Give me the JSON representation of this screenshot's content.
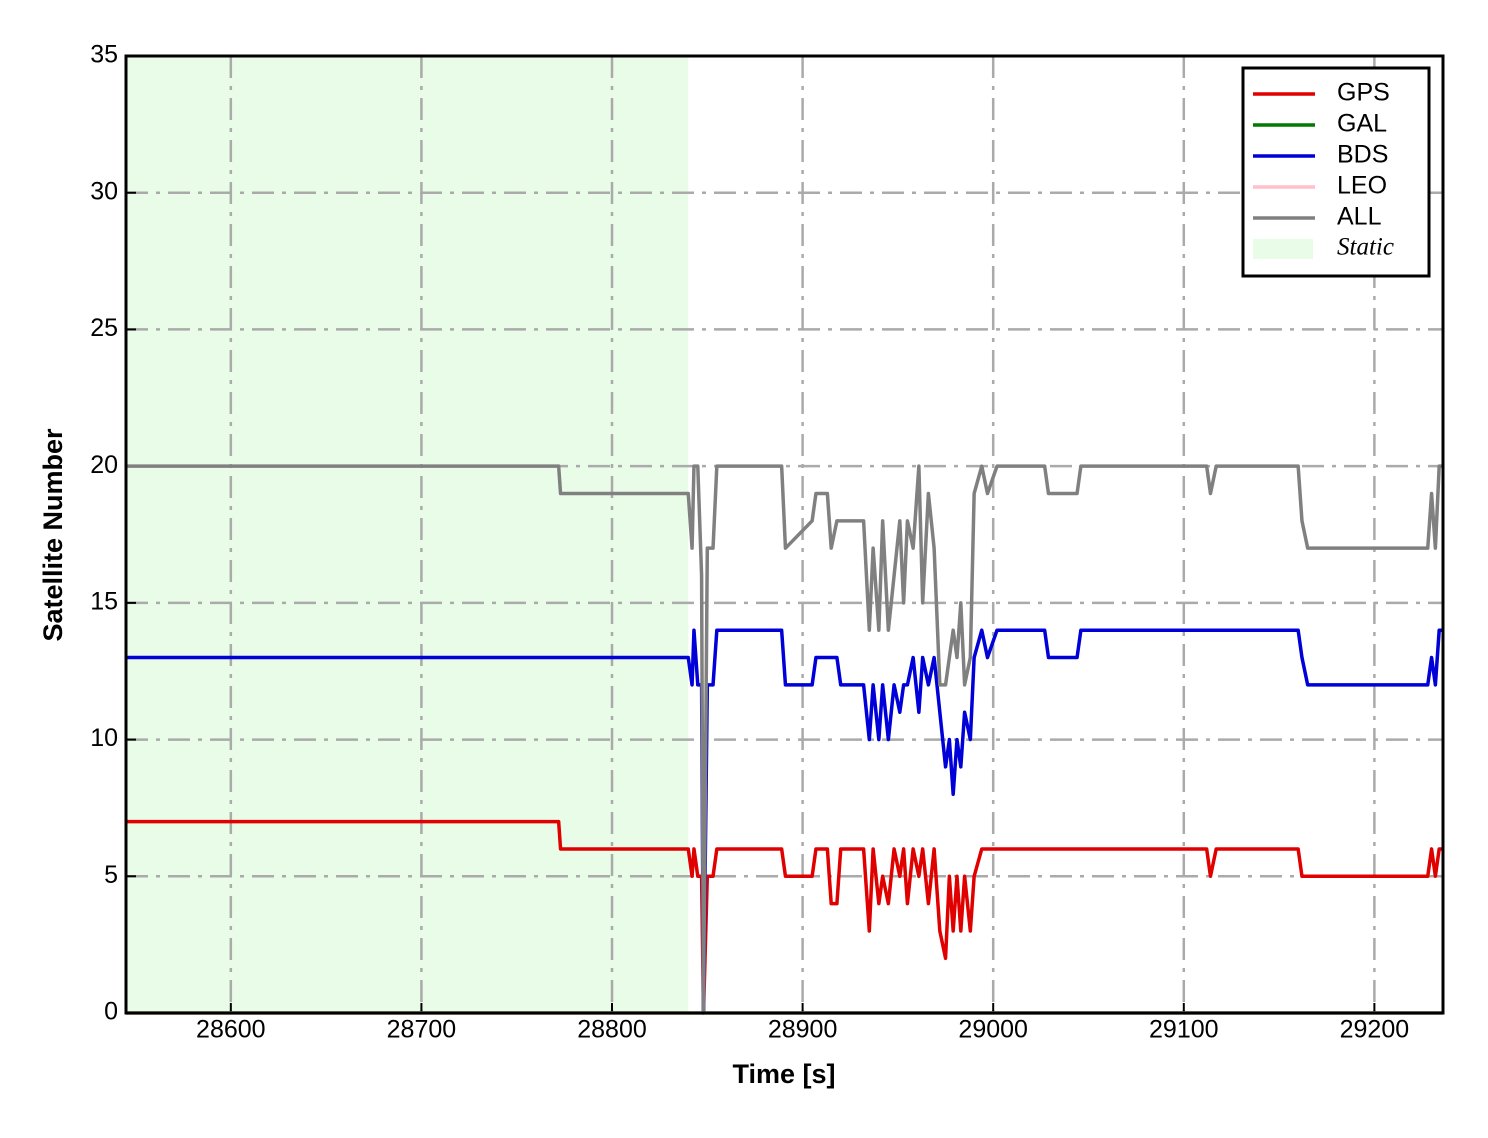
{
  "chart_data": {
    "type": "line",
    "x_label": "Time [s]",
    "y_label": "Satellite Number",
    "x": [
      28545,
      28772,
      28773,
      28840,
      28842,
      28843,
      28845,
      28847,
      28848,
      28850,
      28853,
      28855,
      28889,
      28891,
      28905,
      28907,
      28913,
      28915,
      28918,
      28920,
      28932,
      28935,
      28937,
      28940,
      28942,
      28945,
      28948,
      28951,
      28953,
      28955,
      28958,
      28961,
      28963,
      28966,
      28969,
      28972,
      28975,
      28977,
      28979,
      28981,
      28983,
      28985,
      28988,
      28990,
      28994,
      28997,
      29002,
      29027,
      29029,
      29044,
      29046,
      29112,
      29114,
      29117,
      29160,
      29162,
      29165,
      29167,
      29169,
      29228,
      29230,
      29232,
      29234,
      29236
    ],
    "series": [
      {
        "name": "GPS",
        "color": "#e00000",
        "values": [
          7,
          7,
          6,
          6,
          5,
          6,
          5,
          5,
          0,
          5,
          5,
          6,
          6,
          5,
          5,
          6,
          6,
          4,
          4,
          6,
          6,
          3,
          6,
          4,
          5,
          4,
          6,
          5,
          6,
          4,
          6,
          5,
          6,
          4,
          6,
          3,
          2,
          5,
          3,
          5,
          3,
          5,
          3,
          5,
          6,
          6,
          6,
          6,
          6,
          6,
          6,
          6,
          5,
          6,
          6,
          5,
          5,
          5,
          5,
          5,
          6,
          5,
          6,
          6
        ]
      },
      {
        "name": "GAL",
        "color": "#007a00",
        "values": [
          0,
          0,
          0,
          0,
          0,
          0,
          0,
          0,
          0,
          0,
          0,
          0,
          0,
          0,
          0,
          0,
          0,
          0,
          0,
          0,
          0,
          0,
          0,
          0,
          0,
          0,
          0,
          0,
          0,
          0,
          0,
          0,
          0,
          0,
          0,
          0,
          0,
          0,
          0,
          0,
          0,
          0,
          0,
          0,
          0,
          0,
          0,
          0,
          0,
          0,
          0,
          0,
          0,
          0,
          0,
          0,
          0,
          0,
          0,
          0,
          0,
          0,
          0,
          0
        ]
      },
      {
        "name": "BDS",
        "color": "#0000d8",
        "values": [
          13,
          13,
          13,
          13,
          12,
          14,
          12,
          12,
          0,
          12,
          12,
          14,
          14,
          12,
          12,
          13,
          13,
          13,
          13,
          12,
          12,
          10,
          12,
          10,
          12,
          10,
          12,
          11,
          12,
          12,
          13,
          11,
          13,
          12,
          13,
          11,
          9,
          10,
          8,
          10,
          9,
          11,
          10,
          13,
          14,
          13,
          14,
          14,
          13,
          13,
          14,
          14,
          14,
          14,
          14,
          13,
          12,
          12,
          12,
          12,
          13,
          12,
          14,
          14
        ]
      },
      {
        "name": "LEO",
        "color": "#ffc0cb",
        "values": [
          0,
          0,
          0,
          0,
          0,
          0,
          0,
          0,
          0,
          0,
          0,
          0,
          0,
          0,
          0,
          0,
          0,
          0,
          0,
          0,
          0,
          0,
          0,
          0,
          0,
          0,
          0,
          0,
          0,
          0,
          0,
          0,
          0,
          0,
          0,
          0,
          0,
          0,
          0,
          0,
          0,
          0,
          0,
          0,
          0,
          0,
          0,
          0,
          0,
          0,
          0,
          0,
          0,
          0,
          0,
          0,
          0,
          0,
          0,
          0,
          0,
          0,
          0,
          0
        ]
      },
      {
        "name": "ALL",
        "color": "#808080",
        "values": [
          20,
          20,
          19,
          19,
          17,
          20,
          20,
          16,
          0,
          17,
          17,
          20,
          20,
          17,
          18,
          19,
          19,
          17,
          18,
          18,
          18,
          14,
          17,
          14,
          18,
          14,
          16,
          18,
          15,
          18,
          17,
          20,
          15,
          19,
          17,
          12,
          12,
          13,
          14,
          13,
          15,
          12,
          13,
          19,
          20,
          19,
          20,
          20,
          19,
          19,
          20,
          20,
          19,
          20,
          20,
          18,
          17,
          17,
          17,
          17,
          19,
          17,
          20,
          20
        ]
      }
    ],
    "shade": {
      "name": "Static",
      "range": [
        28545,
        28840
      ],
      "color": "#e8fce8"
    },
    "xlim": [
      28545,
      29236
    ],
    "ylim": [
      0,
      35
    ],
    "xticks": [
      28600,
      28700,
      28800,
      28900,
      29000,
      29100,
      29200
    ],
    "yticks": [
      0,
      5,
      10,
      15,
      20,
      25,
      30,
      35
    ],
    "grid": true,
    "legend": "upper right"
  }
}
